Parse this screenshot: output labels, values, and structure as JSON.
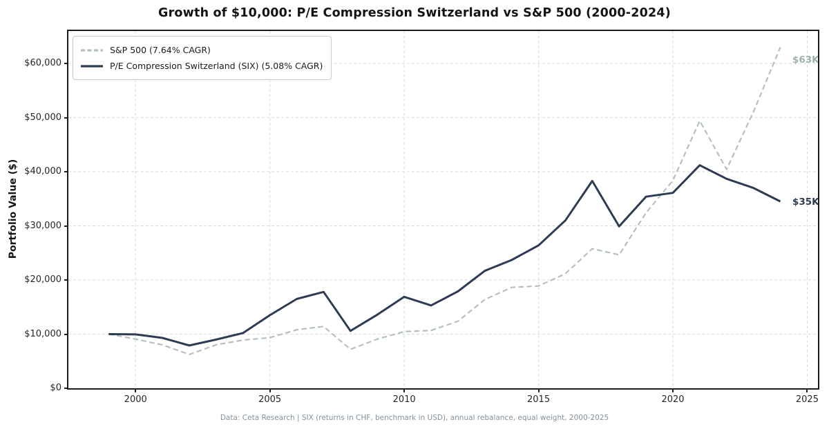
{
  "footer": {
    "text": "Data: Ceta Research | SIX (returns in CHF, benchmark in USD), annual rebalance, equal weight, 2000-2025"
  },
  "colors": {
    "six_line": "#2d3c52",
    "sp500_line": "#b4c1c1",
    "sp500_end_label": "#9fafaf",
    "grid": "#dadada",
    "spine": "#1c1c1c",
    "tick_text": "#262626",
    "footer_text": "#84929d"
  },
  "chart_data": {
    "type": "line",
    "title": "Growth of $10,000: P/E Compression Switzerland vs S&P 500 (2000-2024)",
    "xlabel": "",
    "ylabel": "Portfolio Value ($)",
    "grid": true,
    "legend_position": "upper left",
    "xlim": [
      1997.5,
      2025.4
    ],
    "ylim": [
      0,
      66000
    ],
    "x": [
      1999,
      2000,
      2001,
      2002,
      2003,
      2004,
      2005,
      2006,
      2007,
      2008,
      2009,
      2010,
      2011,
      2012,
      2013,
      2014,
      2015,
      2016,
      2017,
      2018,
      2019,
      2020,
      2021,
      2022,
      2023,
      2024
    ],
    "series": [
      {
        "name": "S&P 500 (7.64% CAGR)",
        "style": "dashed",
        "color": "#b4c1c1",
        "end_label": "$63K",
        "values": [
          10000,
          9090,
          8010,
          6240,
          8030,
          8900,
          9340,
          10810,
          11410,
          7190,
          9090,
          10460,
          10680,
          12390,
          16400,
          18640,
          18900,
          21160,
          25780,
          24650,
          32410,
          38380,
          49400,
          40450,
          51090,
          63000
        ]
      },
      {
        "name": "P/E Compression Switzerland (SIX) (5.08% CAGR)",
        "style": "solid",
        "color": "#2d3c52",
        "end_label": "$35K",
        "values": [
          10000,
          9950,
          9300,
          7900,
          9000,
          10200,
          13500,
          16500,
          17800,
          10600,
          13600,
          16900,
          15300,
          17900,
          21700,
          23700,
          26400,
          31000,
          38300,
          29900,
          35400,
          36100,
          41200,
          38700,
          37000,
          34520
        ]
      }
    ],
    "x_ticks": {
      "values": [
        2000,
        2005,
        2010,
        2015,
        2020,
        2025
      ],
      "labels": [
        "2000",
        "2005",
        "2010",
        "2015",
        "2020",
        "2025"
      ]
    },
    "y_ticks": {
      "values": [
        0,
        10000,
        20000,
        30000,
        40000,
        50000,
        60000
      ],
      "labels": [
        "$0",
        "$10,000",
        "$20,000",
        "$30,000",
        "$40,000",
        "$50,000",
        "$60,000"
      ]
    }
  }
}
